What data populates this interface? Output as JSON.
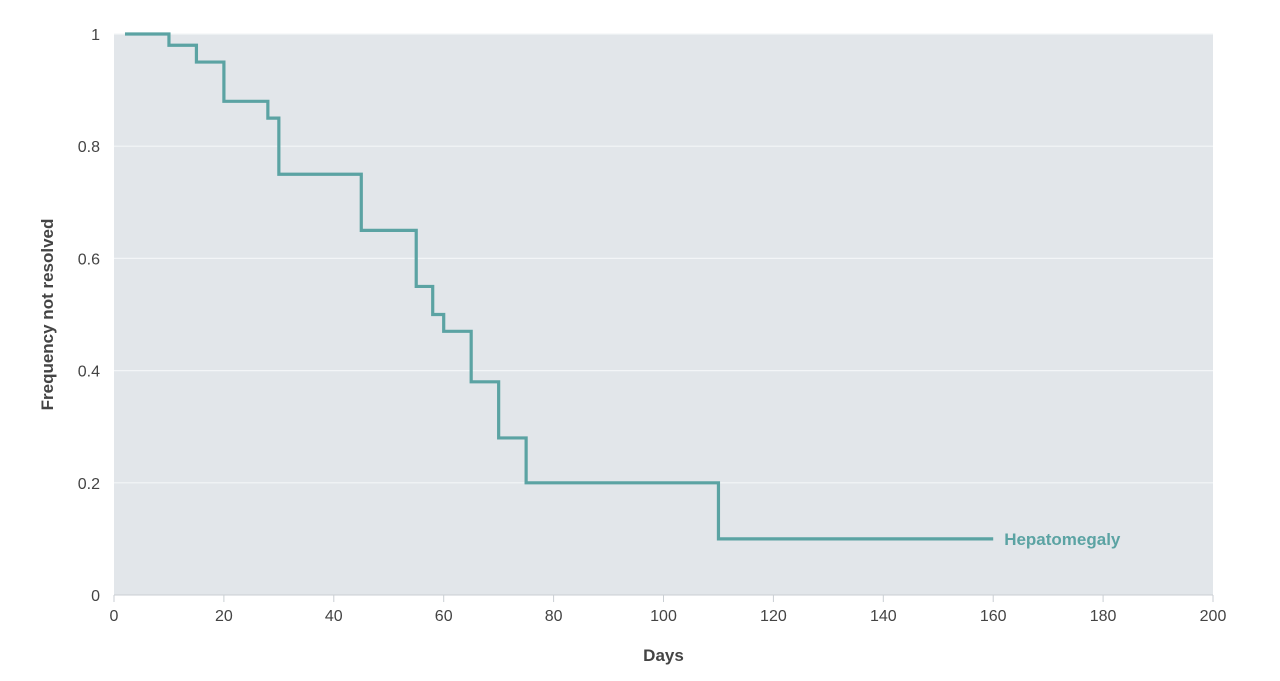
{
  "chart_data": {
    "type": "line",
    "step": true,
    "title": "",
    "xlabel": "Days",
    "ylabel": "Frequency not resolved",
    "xlim": [
      0,
      200
    ],
    "ylim": [
      0,
      1
    ],
    "xticks": [
      0,
      20,
      40,
      60,
      80,
      100,
      120,
      140,
      160,
      180,
      200
    ],
    "yticks": [
      0,
      0.2,
      0.4,
      0.6,
      0.8,
      1
    ],
    "ytick_labels": [
      "0",
      "0.2",
      "0.4",
      "0.6",
      "0.8",
      "1"
    ],
    "grid": "horizontal",
    "plot_background": "#e2e6ea",
    "series": [
      {
        "name": "Hepatomegaly",
        "color": "#5ba3a3",
        "points": [
          {
            "x": 2,
            "y": 1.0
          },
          {
            "x": 10,
            "y": 0.98
          },
          {
            "x": 15,
            "y": 0.95
          },
          {
            "x": 20,
            "y": 0.88
          },
          {
            "x": 28,
            "y": 0.85
          },
          {
            "x": 30,
            "y": 0.75
          },
          {
            "x": 45,
            "y": 0.65
          },
          {
            "x": 55,
            "y": 0.55
          },
          {
            "x": 58,
            "y": 0.5
          },
          {
            "x": 60,
            "y": 0.47
          },
          {
            "x": 65,
            "y": 0.38
          },
          {
            "x": 70,
            "y": 0.28
          },
          {
            "x": 75,
            "y": 0.2
          },
          {
            "x": 110,
            "y": 0.1
          },
          {
            "x": 160,
            "y": 0.1
          }
        ]
      }
    ]
  }
}
